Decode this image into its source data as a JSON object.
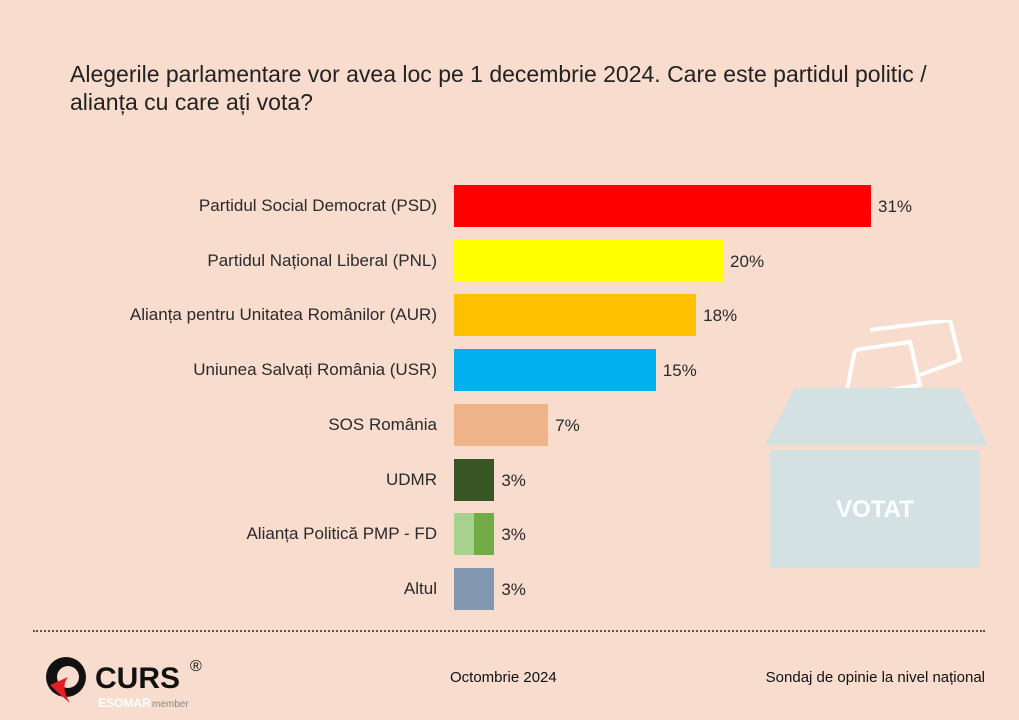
{
  "chart_data": {
    "type": "bar",
    "orientation": "horizontal",
    "title": "Alegerile parlamentare vor avea loc pe 1 decembrie 2024. Care este partidul politic / alianța cu care ați vota?",
    "categories": [
      "Partidul Social Democrat (PSD)",
      "Partidul Național Liberal (PNL)",
      "Alianța pentru Unitatea Românilor (AUR)",
      "Uniunea Salvați România (USR)",
      "SOS România",
      "UDMR",
      "Alianța Politică PMP - FD",
      "Altul"
    ],
    "values": [
      31,
      20,
      18,
      15,
      7,
      3,
      3,
      3
    ],
    "labels": [
      "31%",
      "20%",
      "18%",
      "15%",
      "7%",
      "3%",
      "3%",
      "3%"
    ],
    "colors": [
      "#fe0000",
      "#ffff00",
      "#ffc000",
      "#00b0f0",
      "#f0b48a",
      "#375623",
      "#70ad47",
      "#8497b0"
    ],
    "xlim": [
      0,
      31
    ],
    "grid": false
  },
  "illustration": {
    "ballot_text": "VOTAT"
  },
  "footer": {
    "brand": "CURS",
    "registered": "®",
    "esomar": "ESOMAR",
    "member": "member",
    "date": "Octombrie 2024",
    "survey": "Sondaj de opinie la nivel național"
  }
}
